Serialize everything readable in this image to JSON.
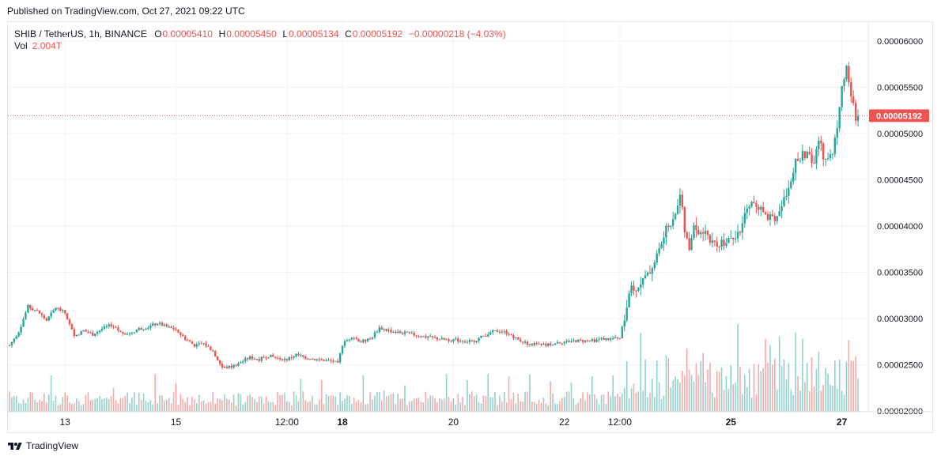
{
  "published": "Published on TradingView.com, Oct 27, 2021 09:22 UTC",
  "legend": {
    "symbol": "SHIB / TetherUS, 1h, BINANCE",
    "o_label": "O",
    "o_value": "0.00005410",
    "h_label": "H",
    "h_value": "0.00005450",
    "l_label": "L",
    "l_value": "0.00005134",
    "c_label": "C",
    "c_value": "0.00005192",
    "change": "−0.00000218 (−4.03%)",
    "vol_label": "Vol",
    "vol_value": "2.004T"
  },
  "footer": {
    "brand": "TradingView"
  },
  "colors": {
    "up": "#26a69a",
    "down": "#ef5350",
    "grid": "#f0f3fa",
    "axis_text": "#131722"
  },
  "chart_data": {
    "type": "candlestick",
    "symbol": "SHIB/USDT",
    "interval": "1h",
    "y_ticks": [
      "0.00006000",
      "0.00005500",
      "0.00005000",
      "0.00004500",
      "0.00004000",
      "0.00003500",
      "0.00003000",
      "0.00002500",
      "0.00002000"
    ],
    "y_range": [
      1.993e-05,
      6.203e-05
    ],
    "x_ticks": [
      "13",
      "15",
      "12:00",
      "18",
      "20",
      "22",
      "12:00",
      "25",
      "27"
    ],
    "x_tick_bold": [
      false,
      false,
      false,
      true,
      false,
      false,
      false,
      true,
      true
    ],
    "last_price": "0.00005192",
    "last_price_value": 5.192e-05,
    "grid": true,
    "price_path": [
      [
        0,
        2.71e-05
      ],
      [
        4,
        2.86e-05
      ],
      [
        8,
        3.13e-05
      ],
      [
        12,
        3.08e-05
      ],
      [
        16,
        2.98e-05
      ],
      [
        20,
        3.12e-05
      ],
      [
        24,
        3.06e-05
      ],
      [
        28,
        2.81e-05
      ],
      [
        32,
        2.87e-05
      ],
      [
        36,
        2.83e-05
      ],
      [
        40,
        2.89e-05
      ],
      [
        44,
        2.93e-05
      ],
      [
        48,
        2.85e-05
      ],
      [
        52,
        2.84e-05
      ],
      [
        56,
        2.89e-05
      ],
      [
        60,
        2.91e-05
      ],
      [
        64,
        2.95e-05
      ],
      [
        68,
        2.91e-05
      ],
      [
        72,
        2.88e-05
      ],
      [
        76,
        2.78e-05
      ],
      [
        80,
        2.71e-05
      ],
      [
        84,
        2.73e-05
      ],
      [
        88,
        2.65e-05
      ],
      [
        92,
        2.47e-05
      ],
      [
        96,
        2.48e-05
      ],
      [
        100,
        2.53e-05
      ],
      [
        104,
        2.58e-05
      ],
      [
        108,
        2.56e-05
      ],
      [
        112,
        2.6e-05
      ],
      [
        116,
        2.57e-05
      ],
      [
        120,
        2.56e-05
      ],
      [
        124,
        2.61e-05
      ],
      [
        128,
        2.58e-05
      ],
      [
        132,
        2.56e-05
      ],
      [
        136,
        2.55e-05
      ],
      [
        140,
        2.54e-05
      ],
      [
        142,
        2.51e-05
      ],
      [
        144,
        2.72e-05
      ],
      [
        148,
        2.81e-05
      ],
      [
        152,
        2.75e-05
      ],
      [
        156,
        2.78e-05
      ],
      [
        160,
        2.9e-05
      ],
      [
        164,
        2.87e-05
      ],
      [
        168,
        2.85e-05
      ],
      [
        172,
        2.84e-05
      ],
      [
        176,
        2.82e-05
      ],
      [
        180,
        2.8e-05
      ],
      [
        184,
        2.79e-05
      ],
      [
        188,
        2.77e-05
      ],
      [
        192,
        2.77e-05
      ],
      [
        196,
        2.76e-05
      ],
      [
        200,
        2.75e-05
      ],
      [
        204,
        2.8e-05
      ],
      [
        208,
        2.85e-05
      ],
      [
        212,
        2.87e-05
      ],
      [
        216,
        2.84e-05
      ],
      [
        220,
        2.77e-05
      ],
      [
        224,
        2.73e-05
      ],
      [
        228,
        2.72e-05
      ],
      [
        232,
        2.71e-05
      ],
      [
        236,
        2.74e-05
      ],
      [
        240,
        2.75e-05
      ],
      [
        244,
        2.76e-05
      ],
      [
        248,
        2.76e-05
      ],
      [
        252,
        2.76e-05
      ],
      [
        256,
        2.78e-05
      ],
      [
        260,
        2.78e-05
      ],
      [
        264,
        2.8e-05
      ],
      [
        266,
        3e-05
      ],
      [
        268,
        3.28e-05
      ],
      [
        272,
        3.37e-05
      ],
      [
        276,
        3.46e-05
      ],
      [
        280,
        3.68e-05
      ],
      [
        284,
        3.95e-05
      ],
      [
        288,
        4.15e-05
      ],
      [
        290,
        4.35e-05
      ],
      [
        292,
        3.95e-05
      ],
      [
        294,
        3.72e-05
      ],
      [
        296,
        4.05e-05
      ],
      [
        298,
        3.9e-05
      ],
      [
        300,
        3.96e-05
      ],
      [
        304,
        3.82e-05
      ],
      [
        308,
        3.82e-05
      ],
      [
        312,
        3.89e-05
      ],
      [
        316,
        3.94e-05
      ],
      [
        320,
        4.25e-05
      ],
      [
        324,
        4.17e-05
      ],
      [
        328,
        4.12e-05
      ],
      [
        332,
        4.1e-05
      ],
      [
        336,
        4.37e-05
      ],
      [
        340,
        4.68e-05
      ],
      [
        344,
        4.78e-05
      ],
      [
        348,
        4.68e-05
      ],
      [
        350,
        4.93e-05
      ],
      [
        352,
        4.77e-05
      ],
      [
        356,
        4.76e-05
      ],
      [
        358,
        5.1e-05
      ],
      [
        360,
        5.55e-05
      ],
      [
        362,
        5.68e-05
      ],
      [
        364,
        5.41e-05
      ],
      [
        366,
        5.19e-05
      ]
    ],
    "volume_range_note": "volume shown as relative bars along bottom of pane"
  }
}
